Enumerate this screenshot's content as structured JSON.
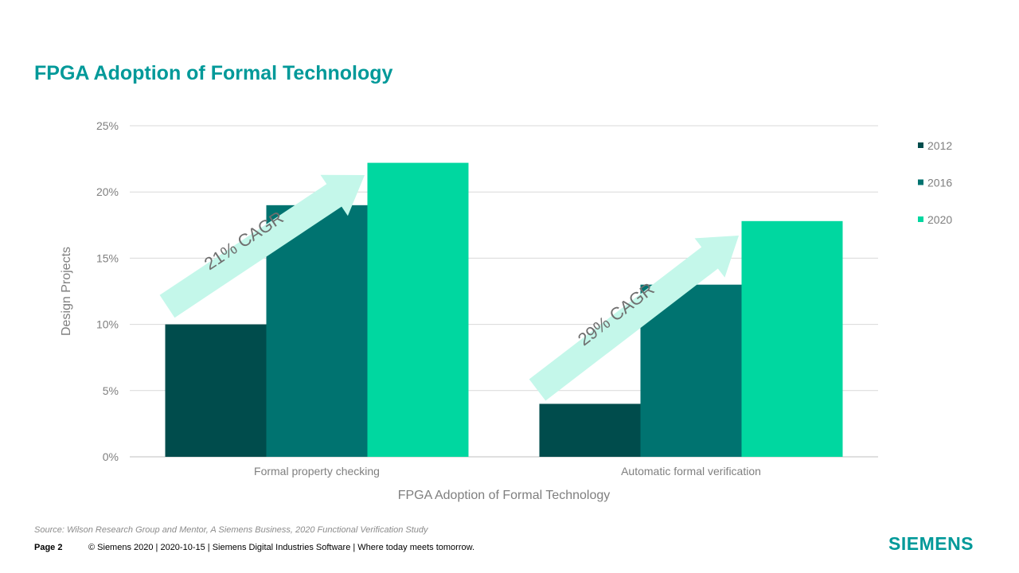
{
  "slide": {
    "title": "FPGA Adoption of Formal Technology",
    "source": "Source:  Wilson Research Group and Mentor,  A Siemens Business, 2020 Functional Verification Study",
    "page_label": "Page 2",
    "footer_text": "© Siemens 2020 | 2020-10-15 | Siemens Digital Industries Software | Where today meets tomorrow.",
    "logo_text": "SIEMENS"
  },
  "chart_data": {
    "type": "bar",
    "xlabel": "FPGA Adoption of Formal Technology",
    "ylabel": "Design Projects",
    "ylim": [
      0,
      25
    ],
    "y_ticks": [
      "0%",
      "5%",
      "10%",
      "15%",
      "20%",
      "25%"
    ],
    "y_tick_values": [
      0,
      5,
      10,
      15,
      20,
      25
    ],
    "grid": true,
    "legend_position": "right",
    "categories": [
      "Formal property checking",
      "Automatic formal verification"
    ],
    "series": [
      {
        "name": "2012",
        "color": "#004c4c",
        "values": [
          10,
          4
        ]
      },
      {
        "name": "2016",
        "color": "#007370",
        "values": [
          19,
          13
        ]
      },
      {
        "name": "2020",
        "color": "#00d7a0",
        "values": [
          22.2,
          17.8
        ]
      }
    ],
    "annotations": [
      {
        "text": "21% CAGR",
        "category": "Formal property checking",
        "arrow_color": "#c4f7ea"
      },
      {
        "text": "29% CAGR",
        "category": "Automatic formal verification",
        "arrow_color": "#c4f7ea"
      }
    ]
  }
}
